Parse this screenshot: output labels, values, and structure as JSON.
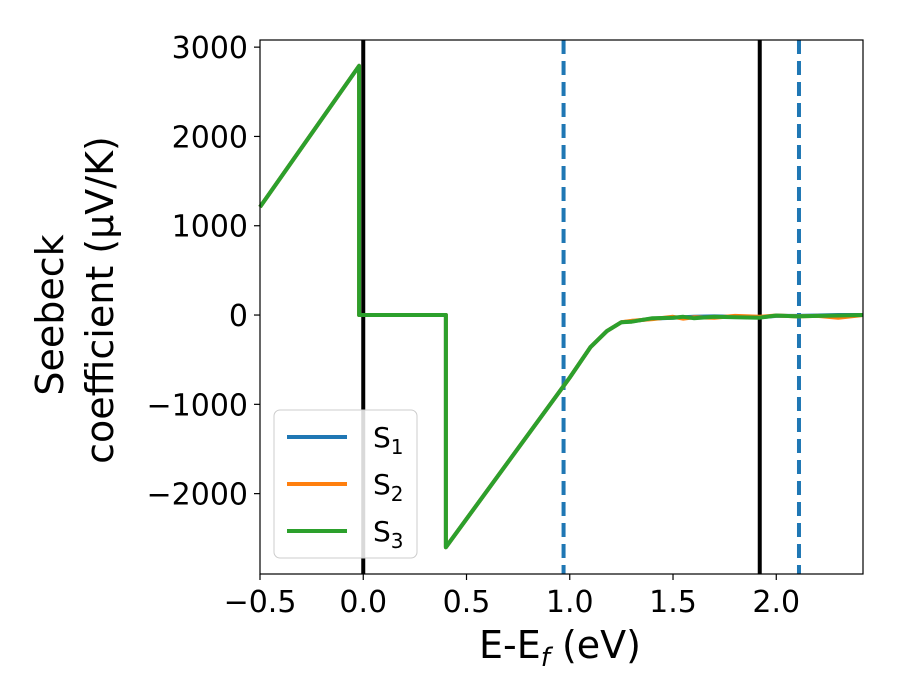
{
  "chart_data": {
    "type": "line",
    "title": "",
    "xlabel": "E-E",
    "xlabel_sub": "f",
    "xlabel_unit": " (eV)",
    "ylabel_line1": "Seebeck",
    "ylabel_line2": "coefficient  (μV/K)",
    "xlim": [
      -0.5,
      2.42
    ],
    "ylim": [
      -2900,
      3080
    ],
    "xticks": [
      -0.5,
      0.0,
      0.5,
      1.0,
      1.5,
      2.0
    ],
    "xtick_labels": [
      "−0.5",
      "0.0",
      "0.5",
      "1.0",
      "1.5",
      "2.0"
    ],
    "yticks": [
      3000,
      2000,
      1000,
      0,
      -1000,
      -2000
    ],
    "ytick_labels": [
      "3000",
      "2000",
      "1000",
      "0",
      "−1000",
      "−2000"
    ],
    "grid": false,
    "legend_position": "lower-left",
    "vlines": [
      {
        "x": 0.0,
        "style": "solid",
        "color": "#000000"
      },
      {
        "x": 1.92,
        "style": "solid",
        "color": "#000000"
      },
      {
        "x": 0.97,
        "style": "dashed",
        "color": "#1f77b4"
      },
      {
        "x": 2.11,
        "style": "dashed",
        "color": "#1f77b4"
      }
    ],
    "series": [
      {
        "name": "S",
        "sub": "1",
        "color": "#1f77b4",
        "points": [
          [
            -0.5,
            1210
          ],
          [
            -0.02,
            2790
          ],
          [
            -0.02,
            0
          ],
          [
            0.4,
            0
          ],
          [
            0.4,
            -2600
          ],
          [
            1.0,
            -700
          ],
          [
            1.1,
            -360
          ],
          [
            1.18,
            -180
          ],
          [
            1.25,
            -80
          ],
          [
            1.3,
            -70
          ],
          [
            1.4,
            -40
          ],
          [
            1.5,
            -30
          ],
          [
            1.6,
            -20
          ],
          [
            1.7,
            -15
          ],
          [
            1.8,
            -20
          ],
          [
            1.92,
            -25
          ],
          [
            2.0,
            -10
          ],
          [
            2.1,
            -10
          ],
          [
            2.2,
            -5
          ],
          [
            2.3,
            0
          ],
          [
            2.42,
            0
          ]
        ]
      },
      {
        "name": "S",
        "sub": "2",
        "color": "#ff7f0e",
        "points": [
          [
            -0.5,
            1210
          ],
          [
            -0.02,
            2790
          ],
          [
            -0.02,
            0
          ],
          [
            0.4,
            0
          ],
          [
            0.4,
            -2600
          ],
          [
            1.0,
            -700
          ],
          [
            1.1,
            -360
          ],
          [
            1.18,
            -180
          ],
          [
            1.25,
            -80
          ],
          [
            1.3,
            -65
          ],
          [
            1.4,
            -45
          ],
          [
            1.5,
            -20
          ],
          [
            1.55,
            -40
          ],
          [
            1.6,
            -25
          ],
          [
            1.7,
            -30
          ],
          [
            1.8,
            -10
          ],
          [
            1.92,
            -20
          ],
          [
            2.0,
            -5
          ],
          [
            2.1,
            -15
          ],
          [
            2.2,
            -10
          ],
          [
            2.3,
            -30
          ],
          [
            2.42,
            0
          ]
        ]
      },
      {
        "name": "S",
        "sub": "3",
        "color": "#2ca02c",
        "points": [
          [
            -0.5,
            1210
          ],
          [
            -0.02,
            2790
          ],
          [
            -0.02,
            0
          ],
          [
            0.4,
            0
          ],
          [
            0.4,
            -2600
          ],
          [
            1.0,
            -700
          ],
          [
            1.1,
            -360
          ],
          [
            1.18,
            -180
          ],
          [
            1.25,
            -80
          ],
          [
            1.3,
            -75
          ],
          [
            1.4,
            -35
          ],
          [
            1.5,
            -30
          ],
          [
            1.55,
            -20
          ],
          [
            1.6,
            -35
          ],
          [
            1.7,
            -20
          ],
          [
            1.8,
            -25
          ],
          [
            1.92,
            -30
          ],
          [
            2.0,
            -5
          ],
          [
            2.1,
            -15
          ],
          [
            2.2,
            -10
          ],
          [
            2.3,
            -5
          ],
          [
            2.42,
            0
          ]
        ]
      }
    ]
  }
}
